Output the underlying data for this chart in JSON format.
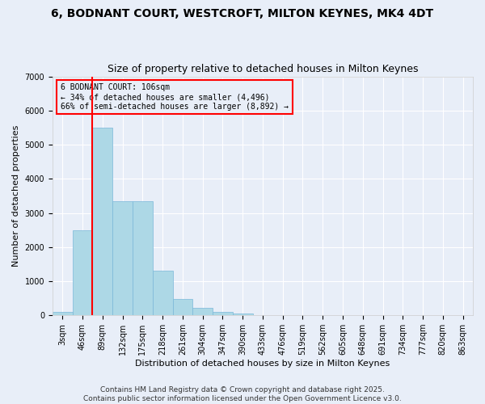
{
  "title_line1": "6, BODNANT COURT, WESTCROFT, MILTON KEYNES, MK4 4DT",
  "title_line2": "Size of property relative to detached houses in Milton Keynes",
  "xlabel": "Distribution of detached houses by size in Milton Keynes",
  "ylabel": "Number of detached properties",
  "bar_values": [
    100,
    2500,
    5500,
    3350,
    3350,
    1300,
    480,
    220,
    100,
    50,
    0,
    0,
    0,
    0,
    0,
    0,
    0,
    0,
    0,
    0,
    0
  ],
  "bar_labels": [
    "3sqm",
    "46sqm",
    "89sqm",
    "132sqm",
    "175sqm",
    "218sqm",
    "261sqm",
    "304sqm",
    "347sqm",
    "390sqm",
    "433sqm",
    "476sqm",
    "519sqm",
    "562sqm",
    "605sqm",
    "648sqm",
    "691sqm",
    "734sqm",
    "777sqm",
    "820sqm",
    "863sqm"
  ],
  "bar_color": "#add8e6",
  "bar_edge_color": "#7ab8d9",
  "background_color": "#e8eef8",
  "grid_color": "#ffffff",
  "vline_x": 2.0,
  "vline_color": "red",
  "annotation_text": "6 BODNANT COURT: 106sqm\n← 34% of detached houses are smaller (4,496)\n66% of semi-detached houses are larger (8,892) →",
  "annotation_box_facecolor": "#e8eef8",
  "annotation_box_edgecolor": "red",
  "ylim": [
    0,
    7000
  ],
  "yticks": [
    0,
    1000,
    2000,
    3000,
    4000,
    5000,
    6000,
    7000
  ],
  "footer_text": "Contains HM Land Registry data © Crown copyright and database right 2025.\nContains public sector information licensed under the Open Government Licence v3.0.",
  "title_fontsize": 10,
  "subtitle_fontsize": 9,
  "axis_label_fontsize": 8,
  "tick_fontsize": 7,
  "annotation_fontsize": 7,
  "footer_fontsize": 6.5
}
